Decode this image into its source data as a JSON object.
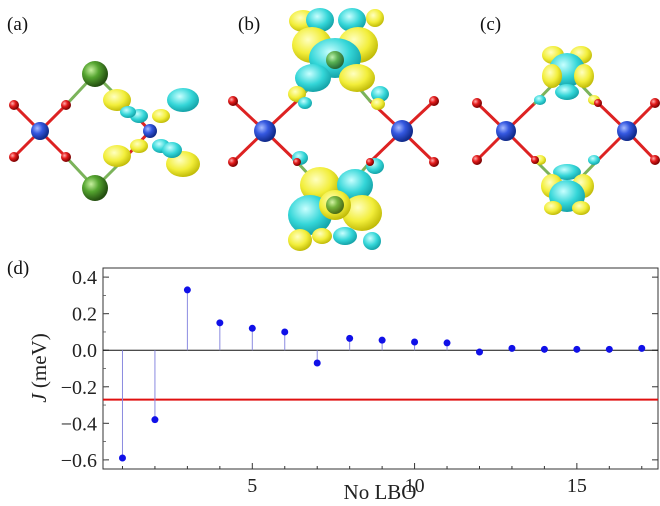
{
  "panels": {
    "a": "(a)",
    "b": "(b)",
    "c": "(c)",
    "d": "(d)"
  },
  "colors": {
    "iso_positive": "#f2ee3a",
    "iso_negative": "#34d6d8",
    "metal_atom": "#2b4fd6",
    "oxygen_atom": "#e01818",
    "ligand_atom": "#4e9a2c",
    "stem": "#8a8ae0",
    "marker": "#1010e8",
    "reference_line": "#e01010"
  },
  "chart_data": {
    "type": "scatter",
    "style": "stem",
    "xlabel": "No LBO",
    "ylabel_var": "J",
    "ylabel_unit": " (meV)",
    "xlim": [
      0.4,
      17.5
    ],
    "ylim": [
      -0.65,
      0.45
    ],
    "xticks": [
      5,
      10,
      15
    ],
    "xtick_labels": [
      "5",
      "10",
      "15"
    ],
    "yticks": [
      0.4,
      0.2,
      0.0,
      -0.2,
      -0.4,
      -0.6
    ],
    "ytick_labels": [
      "0.4",
      "0.2",
      "0.0",
      "−0.2",
      "−0.4",
      "−0.6"
    ],
    "reference_line_y": -0.27,
    "grid": false,
    "x": [
      1,
      2,
      3,
      4,
      5,
      6,
      7,
      8,
      9,
      10,
      11,
      12,
      13,
      14,
      15,
      16,
      17
    ],
    "y": [
      -0.59,
      -0.38,
      0.33,
      0.15,
      0.12,
      0.1,
      -0.07,
      0.065,
      0.055,
      0.045,
      0.04,
      -0.01,
      0.01,
      0.005,
      0.005,
      0.005,
      0.01
    ]
  }
}
